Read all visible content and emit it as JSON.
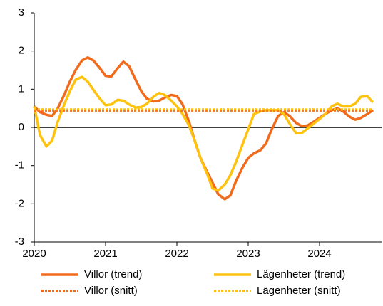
{
  "chart_data": {
    "type": "line",
    "x": [
      2020.0,
      2020.08,
      2020.17,
      2020.25,
      2020.33,
      2020.42,
      2020.5,
      2020.58,
      2020.67,
      2020.75,
      2020.83,
      2020.92,
      2021.0,
      2021.08,
      2021.17,
      2021.25,
      2021.33,
      2021.42,
      2021.5,
      2021.58,
      2021.67,
      2021.75,
      2021.83,
      2021.92,
      2022.0,
      2022.08,
      2022.17,
      2022.25,
      2022.33,
      2022.42,
      2022.5,
      2022.58,
      2022.67,
      2022.75,
      2022.83,
      2022.92,
      2023.0,
      2023.08,
      2023.17,
      2023.25,
      2023.33,
      2023.42,
      2023.5,
      2023.58,
      2023.67,
      2023.75,
      2023.83,
      2023.92,
      2024.0,
      2024.08,
      2024.17,
      2024.25,
      2024.33,
      2024.42,
      2024.5,
      2024.58,
      2024.67,
      2024.75
    ],
    "series": [
      {
        "name": "Villor (trend)",
        "color": "#f26a1b",
        "values": [
          0.55,
          0.4,
          0.33,
          0.3,
          0.5,
          0.85,
          1.2,
          1.5,
          1.75,
          1.83,
          1.75,
          1.55,
          1.35,
          1.33,
          1.55,
          1.72,
          1.6,
          1.25,
          0.95,
          0.75,
          0.68,
          0.7,
          0.78,
          0.85,
          0.82,
          0.6,
          0.15,
          -0.35,
          -0.8,
          -1.15,
          -1.45,
          -1.75,
          -1.88,
          -1.78,
          -1.4,
          -1.05,
          -0.8,
          -0.68,
          -0.6,
          -0.42,
          -0.05,
          0.3,
          0.4,
          0.3,
          0.12,
          0.03,
          0.05,
          0.15,
          0.25,
          0.35,
          0.45,
          0.5,
          0.42,
          0.28,
          0.2,
          0.25,
          0.35,
          0.45
        ]
      },
      {
        "name": "Lägenheter (trend)",
        "color": "#ffc20e",
        "values": [
          0.55,
          -0.2,
          -0.5,
          -0.35,
          0.15,
          0.6,
          0.95,
          1.25,
          1.32,
          1.2,
          0.98,
          0.75,
          0.58,
          0.6,
          0.72,
          0.7,
          0.6,
          0.52,
          0.53,
          0.62,
          0.8,
          0.9,
          0.85,
          0.7,
          0.55,
          0.35,
          0.05,
          -0.35,
          -0.8,
          -1.2,
          -1.6,
          -1.65,
          -1.5,
          -1.25,
          -0.9,
          -0.45,
          -0.05,
          0.35,
          0.42,
          0.45,
          0.45,
          0.45,
          0.35,
          0.1,
          -0.15,
          -0.15,
          -0.03,
          0.1,
          0.22,
          0.35,
          0.55,
          0.62,
          0.55,
          0.55,
          0.62,
          0.8,
          0.82,
          0.65
        ]
      },
      {
        "name": "Villor (snitt)",
        "color": "#f26a1b",
        "dotted": true,
        "value": 0.44
      },
      {
        "name": "Lägenheter (snitt)",
        "color": "#ffc20e",
        "dotted": true,
        "value": 0.47
      }
    ],
    "xlim": [
      2020,
      2024.87
    ],
    "xticks": [
      2020,
      2021,
      2022,
      2023,
      2024
    ],
    "ylim": [
      -3,
      3
    ],
    "yticks": [
      -3,
      -2,
      -1,
      0,
      1,
      2,
      3
    ],
    "zero_line": true
  }
}
